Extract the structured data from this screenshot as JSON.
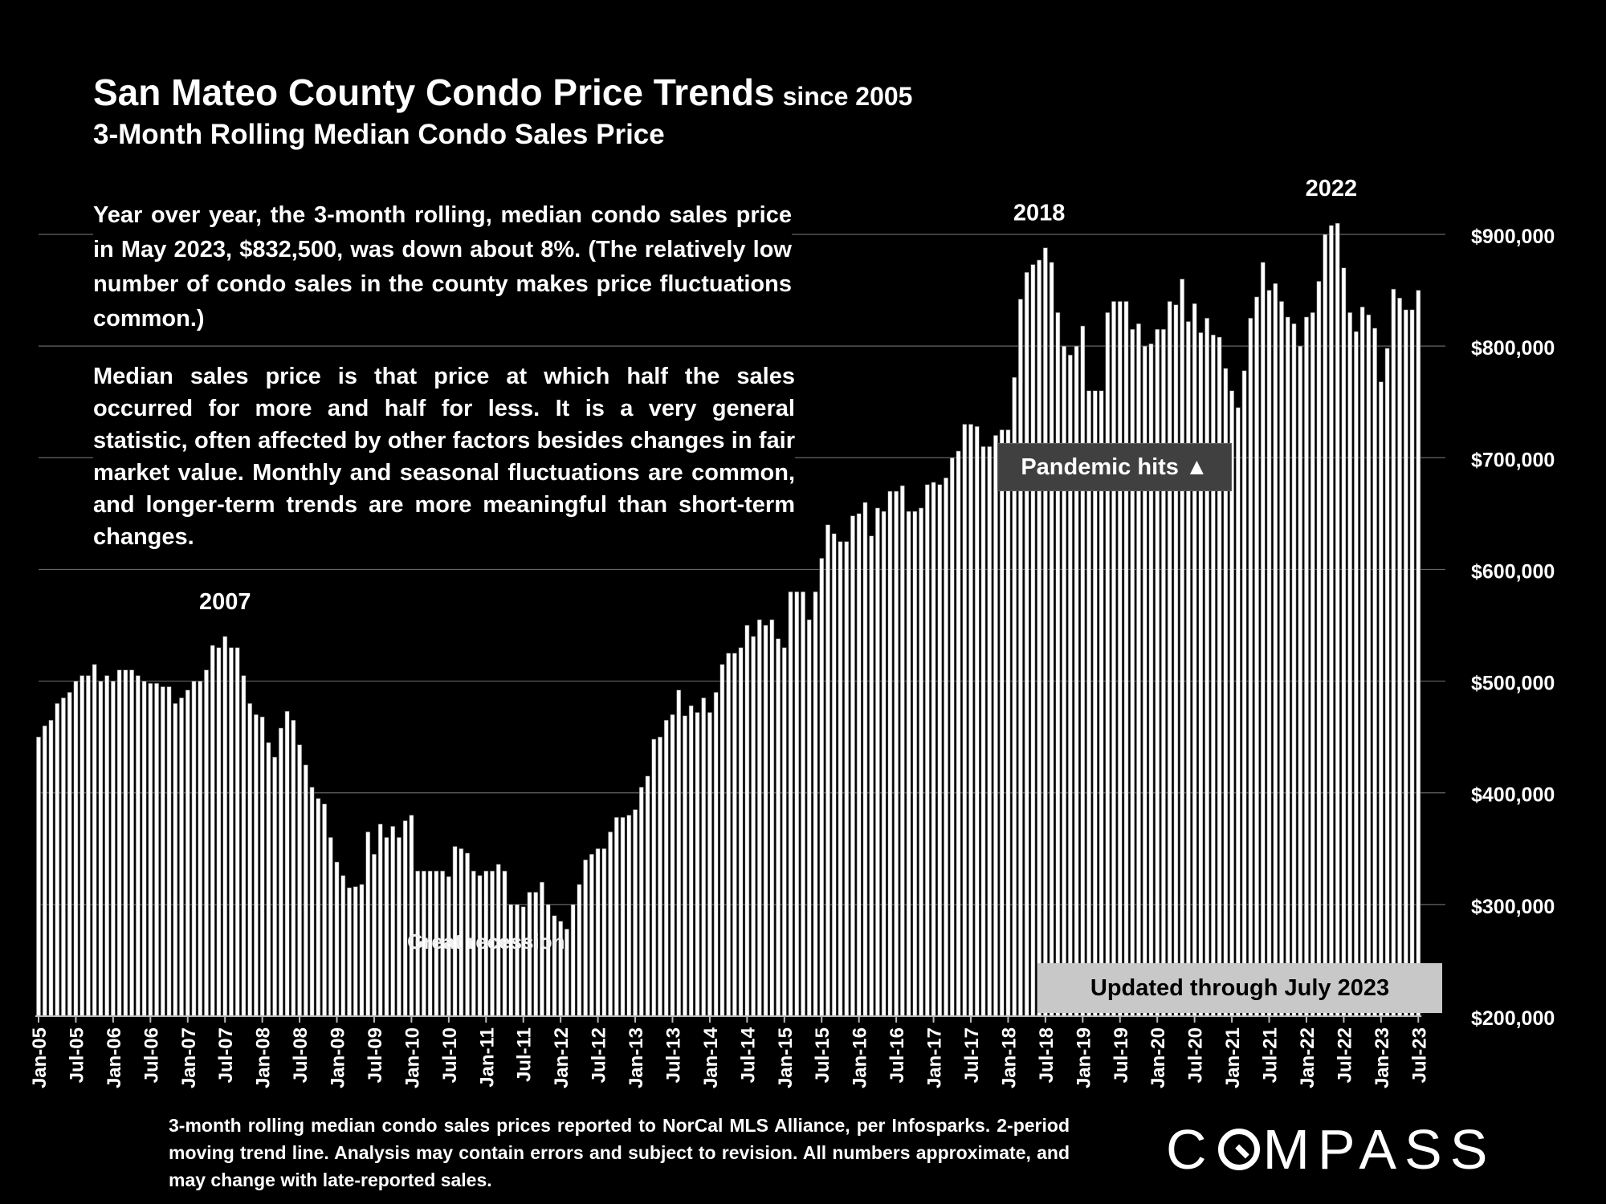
{
  "header": {
    "title": "San Mateo County Condo Price Trends",
    "title_suffix": "since 2005",
    "subtitle": "3-Month Rolling Median Condo Sales Price"
  },
  "notes": {
    "para1": "Year over year, the 3-month rolling, median condo sales price in May 2023, $832,500, was down about 8%. (The relatively low number of condo sales in the county makes price fluctuations common.)",
    "para2": "Median sales price is that price at which half the sales occurred for more and half for less. It is a very general statistic, often affected by other factors besides changes in fair market value. Monthly and seasonal fluctuations are common, and longer-term trends are more meaningful than short-term changes."
  },
  "callout_pandemic": "Pandemic hits ▲",
  "updated_label": "Updated through July 2023",
  "footnote": "3-month rolling median condo sales prices reported to NorCal MLS Alliance, per Infosparks. 2-period moving trend line. Analysis may contain errors and subject to revision. All numbers approximate, and may change with late-reported sales.",
  "logo": {
    "before": "C",
    "after": "MPASS"
  },
  "colors": {
    "background": "#000000",
    "bar_fill": "#ffffff",
    "bar_stroke": "#555555",
    "gridline": "#666666",
    "callout_bg": "#404040",
    "updated_bg": "#c8c8c8"
  },
  "chart_data": {
    "type": "bar",
    "start": "Jan-05",
    "frequency": "monthly",
    "ylim": [
      200000,
      900000
    ],
    "yticks": [
      "$200,000",
      "$300,000",
      "$400,000",
      "$500,000",
      "$600,000",
      "$700,000",
      "$800,000",
      "$900,000"
    ],
    "xtick_labels": [
      "Jan-05",
      "Jul-05",
      "Jan-06",
      "Jul-06",
      "Jan-07",
      "Jul-07",
      "Jan-08",
      "Jul-08",
      "Jan-09",
      "Jul-09",
      "Jan-10",
      "Jul-10",
      "Jan-11",
      "Jul-11",
      "Jan-12",
      "Jul-12",
      "Jan-13",
      "Jul-13",
      "Jan-14",
      "Jul-14",
      "Jan-15",
      "Jul-15",
      "Jan-16",
      "Jul-16",
      "Jan-17",
      "Jul-17",
      "Jan-18",
      "Jul-18",
      "Jan-19",
      "Jul-19",
      "Jan-20",
      "Jul-20",
      "Jan-21",
      "Jul-21",
      "Jan-22",
      "Jul-22",
      "Jan-23",
      "Jul-23"
    ],
    "annotations": [
      {
        "text": "2007",
        "at": "Jul-07"
      },
      {
        "text": "2018",
        "at": "Jun-18"
      },
      {
        "text": "2022",
        "at": "May-22"
      },
      {
        "text": "Great recession",
        "at": "Jan-11"
      }
    ],
    "values": [
      450000,
      460000,
      465000,
      480000,
      485000,
      490000,
      500000,
      505000,
      505000,
      515000,
      500000,
      505000,
      500000,
      510000,
      510000,
      510000,
      505000,
      500000,
      498000,
      498000,
      495000,
      495000,
      480000,
      485000,
      492000,
      500000,
      500000,
      510000,
      532000,
      530000,
      540000,
      530000,
      530000,
      505000,
      480000,
      470000,
      468000,
      445000,
      432000,
      458000,
      473000,
      465000,
      443000,
      425000,
      405000,
      395000,
      390000,
      360000,
      338000,
      326000,
      315000,
      316000,
      318000,
      365000,
      345000,
      372000,
      360000,
      370000,
      360000,
      375000,
      380000,
      330000,
      330000,
      330000,
      330000,
      330000,
      325000,
      352000,
      350000,
      346000,
      330000,
      326000,
      330000,
      330000,
      336000,
      330000,
      300000,
      300000,
      298000,
      311000,
      311000,
      320000,
      300000,
      290000,
      285000,
      278000,
      300000,
      318000,
      340000,
      345000,
      350000,
      350000,
      365000,
      378000,
      378000,
      380000,
      385000,
      405000,
      415000,
      448000,
      450000,
      465000,
      470000,
      492000,
      469000,
      478000,
      472000,
      485000,
      472000,
      490000,
      515000,
      525000,
      525000,
      530000,
      550000,
      540000,
      555000,
      550000,
      555000,
      538000,
      530000,
      580000,
      580000,
      580000,
      555000,
      580000,
      610000,
      640000,
      632000,
      625000,
      625000,
      648000,
      650000,
      660000,
      630000,
      655000,
      652000,
      670000,
      670000,
      675000,
      652000,
      652000,
      655000,
      676000,
      678000,
      676000,
      682000,
      700000,
      706000,
      730000,
      730000,
      728000,
      710000,
      710000,
      720000,
      725000,
      725000,
      772000,
      842000,
      866000,
      873000,
      877000,
      888000,
      875000,
      830000,
      800000,
      792000,
      800000,
      818000,
      760000,
      760000,
      760000,
      830000,
      840000,
      840000,
      840000,
      815000,
      820000,
      800000,
      802000,
      815000,
      815000,
      840000,
      837000,
      860000,
      822000,
      838000,
      812000,
      825000,
      810000,
      808000,
      780000,
      760000,
      745000,
      778000,
      825000,
      844000,
      875000,
      850000,
      856000,
      840000,
      826000,
      820000,
      800000,
      826000,
      830000,
      858000,
      900000,
      908000,
      910000,
      870000,
      830000,
      813000,
      835000,
      828000,
      816000,
      768000,
      798000,
      851000,
      843000,
      832500,
      832500,
      850000
    ]
  }
}
